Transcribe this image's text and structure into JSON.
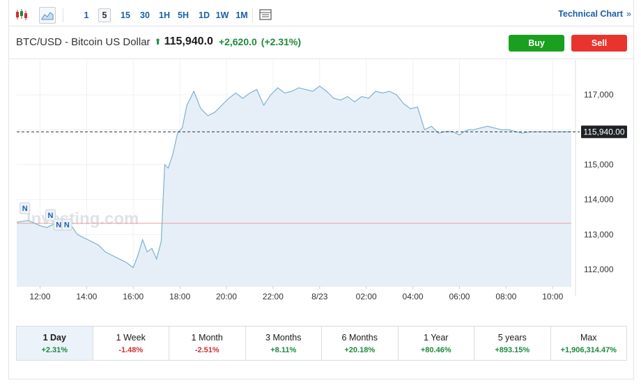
{
  "toolbar": {
    "timeframes": [
      "1",
      "5",
      "15",
      "30",
      "1H",
      "5H",
      "1D",
      "1W",
      "1M"
    ],
    "active_timeframe": "5",
    "technical_chart_label": "Technical Chart",
    "technical_chart_chevron": "»",
    "icons": [
      "candlestick-icon",
      "area-chart-icon",
      "table-view-icon"
    ]
  },
  "header": {
    "instrument": "BTC/USD - Bitcoin US Dollar",
    "price": "115,940.0",
    "change": "+2,620.0",
    "change_pct": "(+2.31%)",
    "direction": "up"
  },
  "actions": {
    "buy_label": "Buy",
    "sell_label": "Sell"
  },
  "colors": {
    "up": "#1c8a3c",
    "down": "#d32f2f",
    "buy": "#1aa01e",
    "sell": "#e8342c",
    "line": "#7fb0d3",
    "area": "#e6eff7",
    "link": "#1b5fa8",
    "previous_close_line": "#e8a0a0"
  },
  "watermark": "Investing.com",
  "news_markers": [
    "N",
    "N",
    "N",
    "N"
  ],
  "chart_data": {
    "type": "area",
    "title": "",
    "xlabel": "",
    "ylabel": "",
    "x_ticks": [
      "12:00",
      "14:00",
      "16:00",
      "18:00",
      "20:00",
      "22:00",
      "8/23",
      "02:00",
      "04:00",
      "06:00",
      "08:00",
      "10:00"
    ],
    "y_ticks": [
      112000,
      113000,
      114000,
      115000,
      116000,
      117000
    ],
    "y_tick_labels": [
      "112,000",
      "113,000",
      "114,000",
      "115,000",
      "",
      "117,000"
    ],
    "ylim": [
      111520,
      118000
    ],
    "x_range_hours": [
      11.0,
      34.8
    ],
    "previous_close": 113320,
    "last_price": 115940,
    "last_price_label": "115,940.00",
    "grid": true,
    "series": [
      {
        "x": [
          11.0,
          11.5,
          12.0,
          12.3,
          12.6,
          13.0,
          13.3,
          13.6,
          13.9,
          14.2,
          14.5,
          14.8,
          15.1,
          15.4,
          15.7,
          16.0,
          16.2,
          16.4,
          16.6,
          16.8,
          17.0,
          17.2,
          17.35,
          17.5,
          17.7,
          17.9,
          18.1,
          18.3,
          18.6,
          18.9,
          19.2,
          19.5,
          19.8,
          20.1,
          20.4,
          20.7,
          21.0,
          21.3,
          21.6,
          21.9,
          22.2,
          22.5,
          22.8,
          23.1,
          23.4,
          23.7,
          24.0,
          24.3,
          24.6,
          24.9,
          25.2,
          25.5,
          25.8,
          26.1,
          26.4,
          26.7,
          27.0,
          27.3,
          27.6,
          27.9,
          28.2,
          28.5,
          28.8,
          29.1,
          29.4,
          29.7,
          30.0,
          30.2,
          30.4,
          30.6,
          30.9,
          31.2,
          31.5,
          31.8,
          32.1,
          32.4,
          32.7,
          33.0,
          33.3,
          33.6,
          33.9,
          34.2,
          34.5,
          34.8
        ],
        "y": [
          113350,
          113400,
          113250,
          113200,
          113300,
          113150,
          113300,
          113000,
          112900,
          112800,
          112700,
          112500,
          112400,
          112300,
          112200,
          112050,
          112400,
          112850,
          112500,
          112600,
          112300,
          112800,
          115000,
          114900,
          115300,
          115900,
          116050,
          116700,
          117100,
          116600,
          116400,
          116500,
          116700,
          116900,
          117050,
          116900,
          117050,
          117150,
          116700,
          117000,
          117200,
          117050,
          117100,
          117200,
          117150,
          117100,
          117250,
          117100,
          116900,
          116850,
          116950,
          116800,
          116950,
          116900,
          117100,
          117050,
          117100,
          117000,
          116750,
          116600,
          116650,
          116000,
          116100,
          115900,
          115950,
          115950,
          115850,
          115950,
          116000,
          116000,
          116050,
          116100,
          116050,
          116000,
          116000,
          115950,
          115900,
          115940,
          115940,
          115940,
          115940,
          115940,
          115940,
          115940
        ]
      }
    ]
  },
  "periods": [
    {
      "label": "1 Day",
      "change": "+2.31%",
      "dir": "pos",
      "active": true
    },
    {
      "label": "1 Week",
      "change": "-1.48%",
      "dir": "neg"
    },
    {
      "label": "1 Month",
      "change": "-2.51%",
      "dir": "neg"
    },
    {
      "label": "3 Months",
      "change": "+8.11%",
      "dir": "pos"
    },
    {
      "label": "6 Months",
      "change": "+20.18%",
      "dir": "pos"
    },
    {
      "label": "1 Year",
      "change": "+80.46%",
      "dir": "pos"
    },
    {
      "label": "5 years",
      "change": "+893.15%",
      "dir": "pos"
    },
    {
      "label": "Max",
      "change": "+1,906,314.47%",
      "dir": "pos"
    }
  ]
}
